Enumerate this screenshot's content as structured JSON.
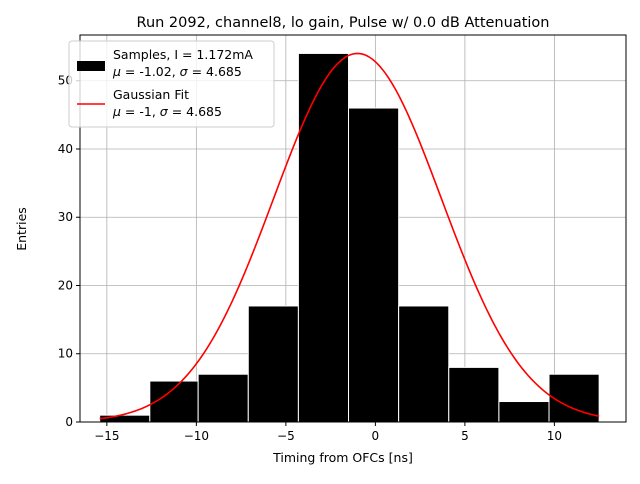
{
  "chart_data": {
    "type": "bar",
    "title": "Run 2092, channel8, lo gain, Pulse w/ 0.0 dB Attenuation",
    "xlabel": "Timing from OFCs [ns]",
    "ylabel": "Entries",
    "xlim": [
      -16.5,
      14.0
    ],
    "ylim": [
      0,
      56.7
    ],
    "xticks": [
      -15,
      -10,
      -5,
      0,
      5,
      10
    ],
    "xtick_labels": [
      "−15",
      "−10",
      "−5",
      "0",
      "5",
      "10"
    ],
    "yticks": [
      0,
      10,
      20,
      30,
      40,
      50
    ],
    "ytick_labels": [
      "0",
      "10",
      "20",
      "30",
      "40",
      "50"
    ],
    "grid": true,
    "legend_position": "top-left",
    "histogram": {
      "name": "Samples",
      "color": "#000000",
      "bins": [
        {
          "x0": -15.4,
          "x1": -12.6,
          "count": 1
        },
        {
          "x0": -12.6,
          "x1": -9.9,
          "count": 6
        },
        {
          "x0": -9.9,
          "x1": -7.1,
          "count": 7
        },
        {
          "x0": -7.1,
          "x1": -4.3,
          "count": 17
        },
        {
          "x0": -4.3,
          "x1": -1.5,
          "count": 54
        },
        {
          "x0": -1.5,
          "x1": 1.3,
          "count": 46
        },
        {
          "x0": 1.3,
          "x1": 4.1,
          "count": 17
        },
        {
          "x0": 4.1,
          "x1": 6.9,
          "count": 8
        },
        {
          "x0": 6.9,
          "x1": 9.7,
          "count": 3
        },
        {
          "x0": 9.7,
          "x1": 12.5,
          "count": 7
        }
      ]
    },
    "fit": {
      "name": "Gaussian Fit",
      "color": "#ff0000",
      "mu": -1,
      "sigma": 4.685,
      "amplitude": 54,
      "x_range": [
        -15.4,
        12.5
      ]
    },
    "legend": [
      {
        "line1": "Samples, I = 1.172mA",
        "line2_mu": "-1.02",
        "line2_sigma": "4.685",
        "kind": "patch"
      },
      {
        "line1": "Gaussian Fit",
        "line2_mu": "-1",
        "line2_sigma": "4.685",
        "kind": "line"
      }
    ]
  }
}
